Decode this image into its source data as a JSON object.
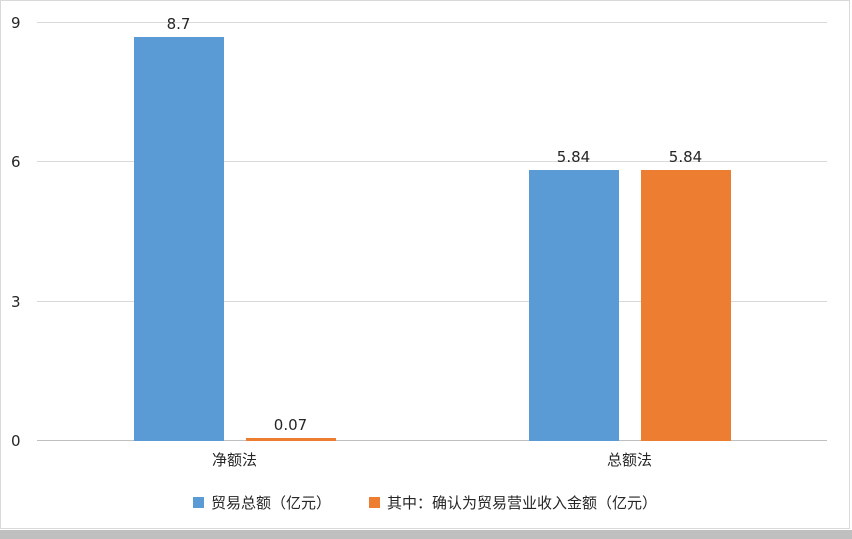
{
  "chart_data": {
    "type": "bar",
    "title": "",
    "categories": [
      "净额法",
      "总额法"
    ],
    "series": [
      {
        "name": "贸易总额（亿元）",
        "color": "#5b9bd5",
        "values": [
          8.7,
          5.84
        ],
        "labels": [
          "8.7",
          "5.84"
        ]
      },
      {
        "name": "其中：确认为贸易营业收入金额（亿元）",
        "color": "#ed7d31",
        "values": [
          0.07,
          5.84
        ],
        "labels": [
          "0.07",
          "5.84"
        ]
      }
    ],
    "ylim": [
      0,
      9
    ],
    "yticks": [
      0,
      3,
      6,
      9
    ],
    "ytick_labels": [
      "0",
      "3",
      "6",
      "9"
    ],
    "grid": true,
    "legend_position": "bottom",
    "gridline_color": "#d9d9d9",
    "baseline_color": "#bfbfbf",
    "text_color": "#262626"
  }
}
